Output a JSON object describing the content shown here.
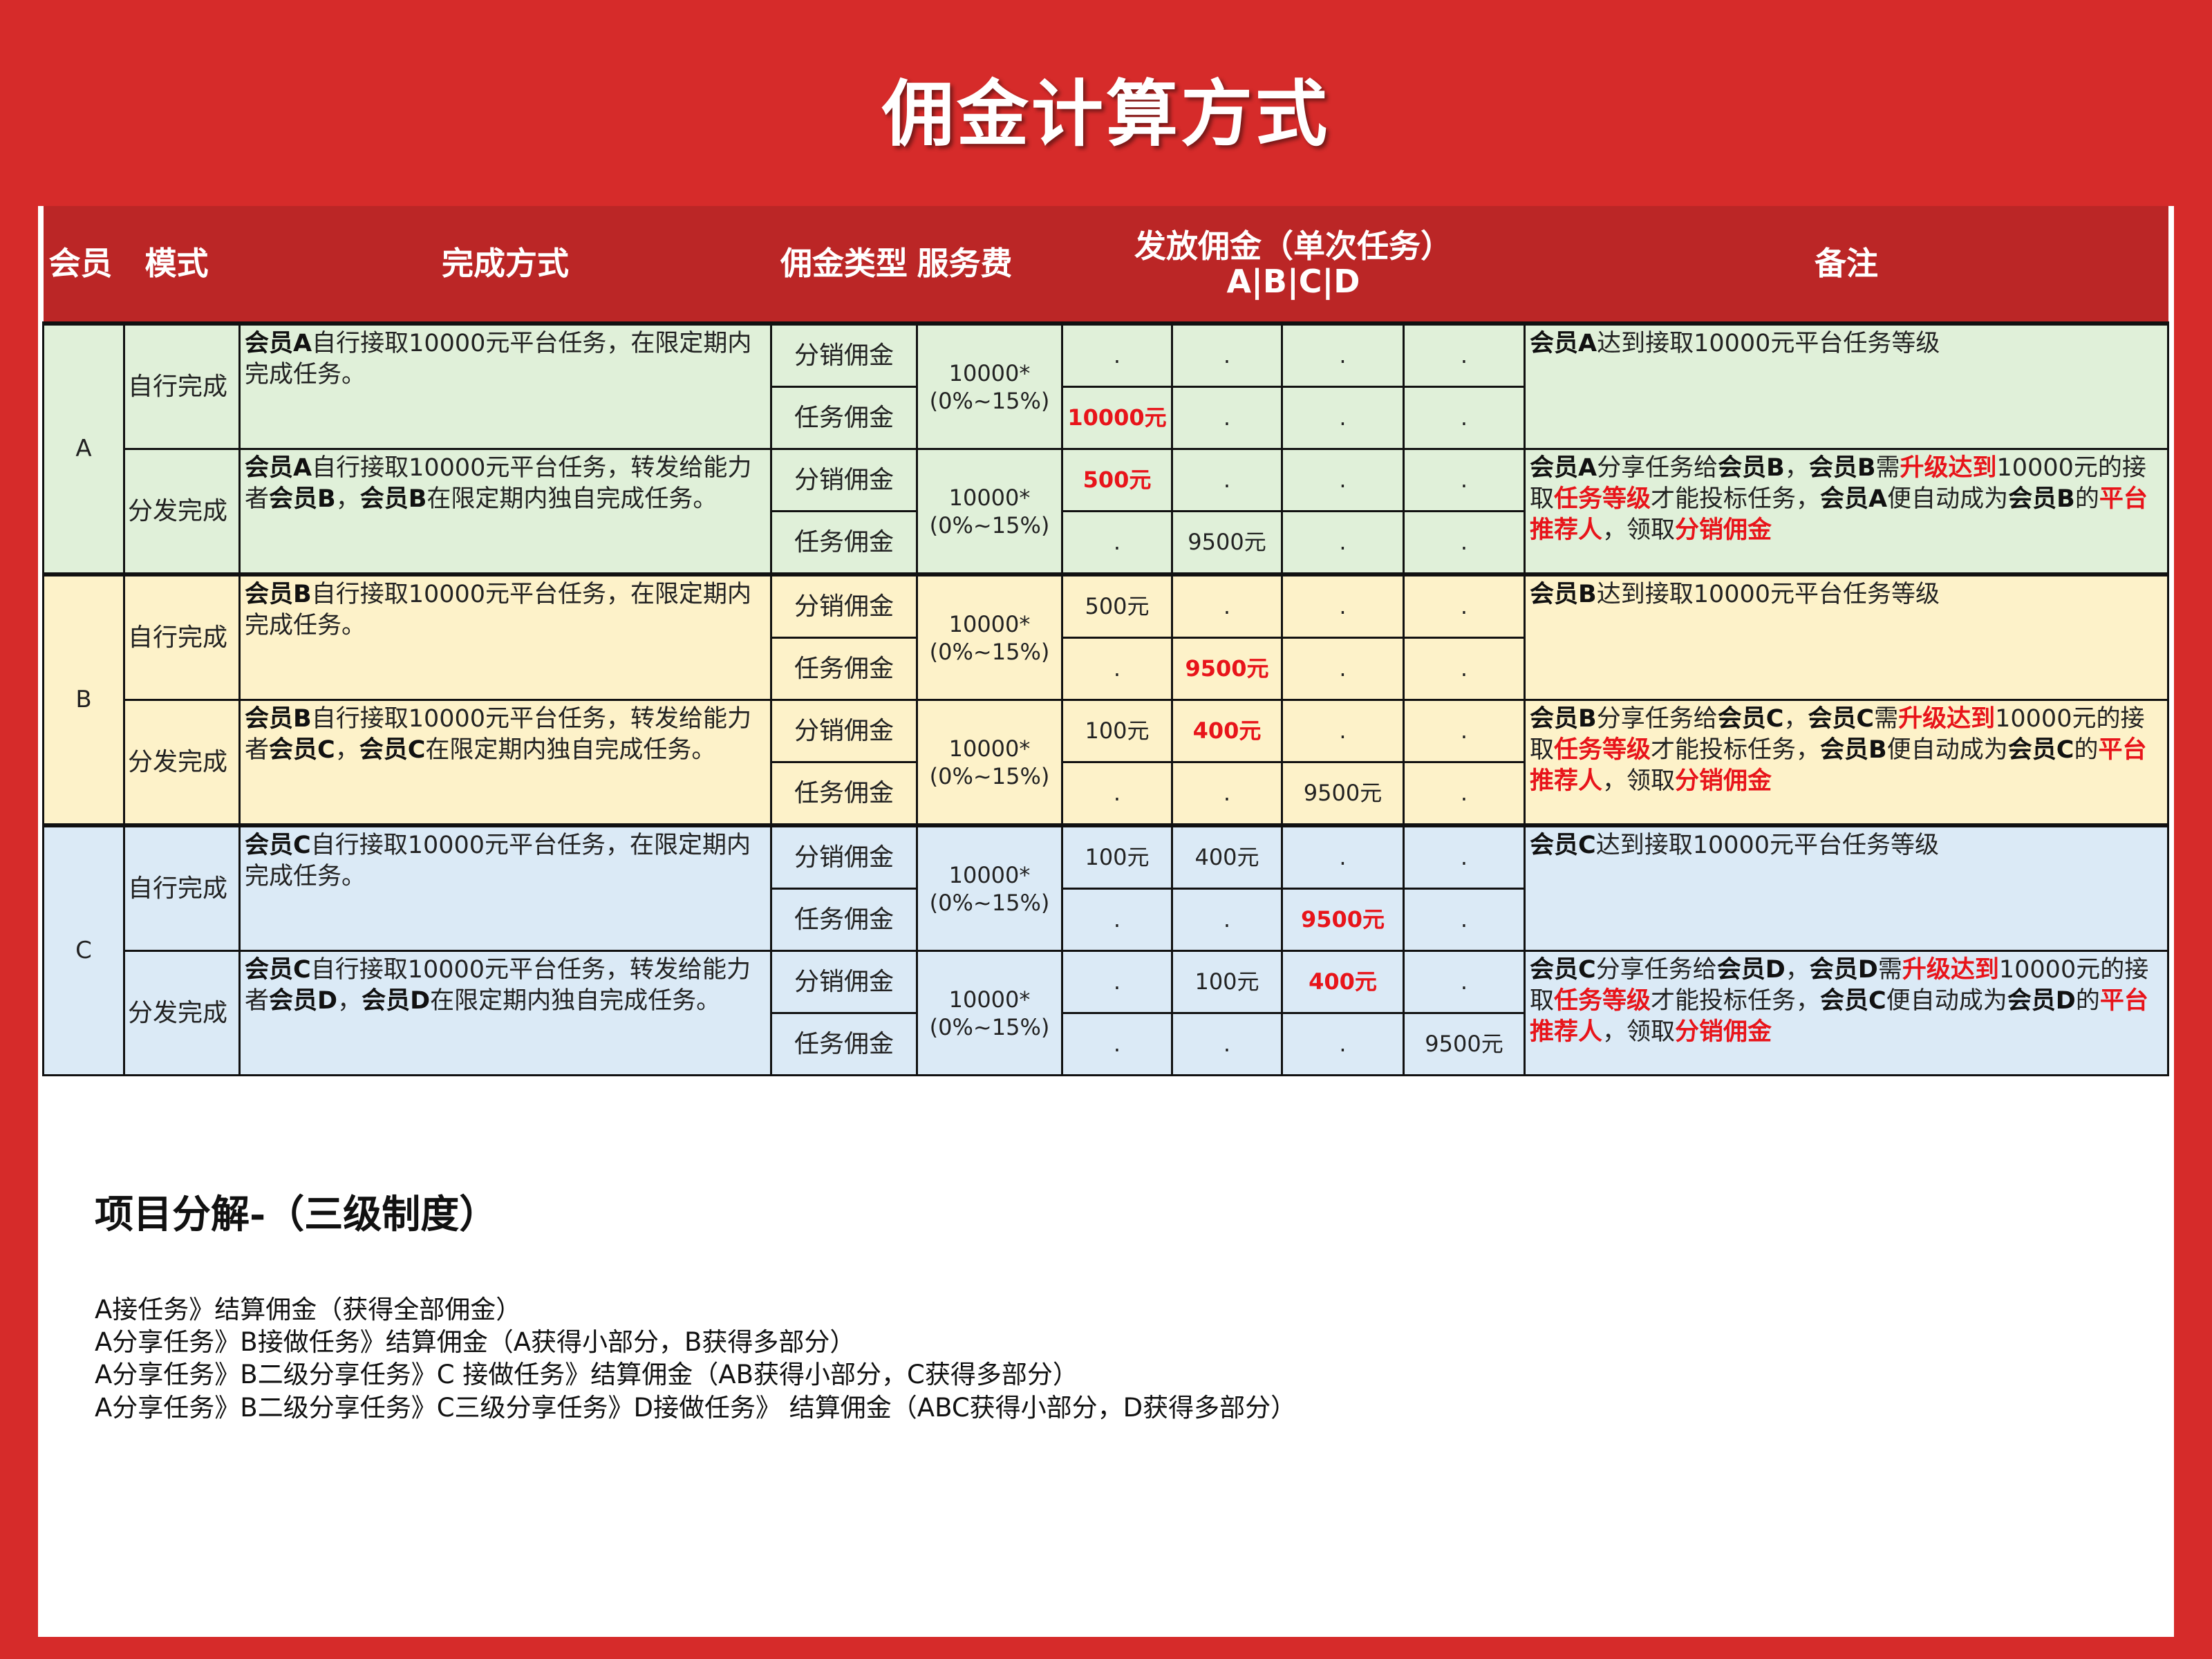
{
  "title": "佣金计算方式",
  "colors": {
    "background": "#d62b2a",
    "header": "#bb2626",
    "red_text": "#e8141a",
    "group_A": "#e0f0d9",
    "group_B": "#fdf2c9",
    "group_C": "#dbeaf6"
  },
  "headers": {
    "member": "会员",
    "mode": "模式",
    "method": "完成方式",
    "type": "佣金类型",
    "fee": "服务费",
    "payout": "发放佣金（单次任务）",
    "payout_sub": "A|B|C|D",
    "remark": "备注"
  },
  "members": [
    {
      "id": "A",
      "color": "#e0f0d9",
      "modes": [
        {
          "mode": "自行完成",
          "desc": [
            {
              "t": "会员A",
              "s": "b"
            },
            {
              "t": "自行接取10000元平台任务，在限定期内完成任务。",
              "s": ""
            }
          ],
          "fee": [
            "10000*",
            "(0%~15%)"
          ],
          "rows": [
            {
              "type": "分销佣金",
              "cells": [
                {
                  "v": ".",
                  "red": false
                },
                {
                  "v": ".",
                  "red": false
                },
                {
                  "v": ".",
                  "red": false
                },
                {
                  "v": ".",
                  "red": false
                }
              ]
            },
            {
              "type": "任务佣金",
              "cells": [
                {
                  "v": "10000元",
                  "red": true
                },
                {
                  "v": ".",
                  "red": false
                },
                {
                  "v": ".",
                  "red": false
                },
                {
                  "v": ".",
                  "red": false
                }
              ]
            }
          ],
          "remark": [
            {
              "t": "会员A",
              "s": "b"
            },
            {
              "t": "达到接取10000元平台任务等级",
              "s": ""
            }
          ]
        },
        {
          "mode": "分发完成",
          "desc": [
            {
              "t": "会员A",
              "s": "b"
            },
            {
              "t": "自行接取10000元平台任务，转发给能力者",
              "s": ""
            },
            {
              "t": "会员B",
              "s": "b"
            },
            {
              "t": "，",
              "s": ""
            },
            {
              "t": "会员B",
              "s": "b"
            },
            {
              "t": "在限定期内独自完成任务。",
              "s": ""
            }
          ],
          "fee": [
            "10000*",
            "(0%~15%)"
          ],
          "rows": [
            {
              "type": "分销佣金",
              "cells": [
                {
                  "v": "500元",
                  "red": true
                },
                {
                  "v": ".",
                  "red": false
                },
                {
                  "v": ".",
                  "red": false
                },
                {
                  "v": ".",
                  "red": false
                }
              ]
            },
            {
              "type": "任务佣金",
              "cells": [
                {
                  "v": ".",
                  "red": false
                },
                {
                  "v": "9500元",
                  "red": false
                },
                {
                  "v": ".",
                  "red": false
                },
                {
                  "v": ".",
                  "red": false
                }
              ]
            }
          ],
          "remark": [
            {
              "t": "会员A",
              "s": "b"
            },
            {
              "t": "分享任务给",
              "s": ""
            },
            {
              "t": "会员B",
              "s": "b"
            },
            {
              "t": "，",
              "s": ""
            },
            {
              "t": "会员B",
              "s": "b"
            },
            {
              "t": "需",
              "s": ""
            },
            {
              "t": "升级达到",
              "s": "r"
            },
            {
              "t": "10000元的接取",
              "s": ""
            },
            {
              "t": "任务等级",
              "s": "r"
            },
            {
              "t": "才能投标任务，",
              "s": ""
            },
            {
              "t": "会员A",
              "s": "b"
            },
            {
              "t": "便自动成为",
              "s": ""
            },
            {
              "t": "会员B",
              "s": "b"
            },
            {
              "t": "的",
              "s": ""
            },
            {
              "t": "平台推荐人",
              "s": "r"
            },
            {
              "t": "，领取",
              "s": ""
            },
            {
              "t": "分销佣金",
              "s": "r"
            }
          ]
        }
      ]
    },
    {
      "id": "B",
      "color": "#fdf2c9",
      "modes": [
        {
          "mode": "自行完成",
          "desc": [
            {
              "t": "会员B",
              "s": "b"
            },
            {
              "t": "自行接取10000元平台任务，在限定期内完成任务。",
              "s": ""
            }
          ],
          "fee": [
            "10000*",
            "(0%~15%)"
          ],
          "rows": [
            {
              "type": "分销佣金",
              "cells": [
                {
                  "v": "500元",
                  "red": false
                },
                {
                  "v": ".",
                  "red": false
                },
                {
                  "v": ".",
                  "red": false
                },
                {
                  "v": ".",
                  "red": false
                }
              ]
            },
            {
              "type": "任务佣金",
              "cells": [
                {
                  "v": ".",
                  "red": false
                },
                {
                  "v": "9500元",
                  "red": true
                },
                {
                  "v": ".",
                  "red": false
                },
                {
                  "v": ".",
                  "red": false
                }
              ]
            }
          ],
          "remark": [
            {
              "t": "会员B",
              "s": "b"
            },
            {
              "t": "达到接取10000元平台任务等级",
              "s": ""
            }
          ]
        },
        {
          "mode": "分发完成",
          "desc": [
            {
              "t": "会员B",
              "s": "b"
            },
            {
              "t": "自行接取10000元平台任务，转发给能力者",
              "s": ""
            },
            {
              "t": "会员C",
              "s": "b"
            },
            {
              "t": "，",
              "s": ""
            },
            {
              "t": "会员C",
              "s": "b"
            },
            {
              "t": "在限定期内独自完成任务。",
              "s": ""
            }
          ],
          "fee": [
            "10000*",
            "(0%~15%)"
          ],
          "rows": [
            {
              "type": "分销佣金",
              "cells": [
                {
                  "v": "100元",
                  "red": false
                },
                {
                  "v": "400元",
                  "red": true
                },
                {
                  "v": ".",
                  "red": false
                },
                {
                  "v": ".",
                  "red": false
                }
              ]
            },
            {
              "type": "任务佣金",
              "cells": [
                {
                  "v": ".",
                  "red": false
                },
                {
                  "v": ".",
                  "red": false
                },
                {
                  "v": "9500元",
                  "red": false
                },
                {
                  "v": ".",
                  "red": false
                }
              ]
            }
          ],
          "remark": [
            {
              "t": "会员B",
              "s": "b"
            },
            {
              "t": "分享任务给",
              "s": ""
            },
            {
              "t": "会员C",
              "s": "b"
            },
            {
              "t": "，",
              "s": ""
            },
            {
              "t": "会员C",
              "s": "b"
            },
            {
              "t": "需",
              "s": ""
            },
            {
              "t": "升级达到",
              "s": "r"
            },
            {
              "t": "10000元的接取",
              "s": ""
            },
            {
              "t": "任务等级",
              "s": "r"
            },
            {
              "t": "才能投标任务，",
              "s": ""
            },
            {
              "t": "会员B",
              "s": "b"
            },
            {
              "t": "便自动成为",
              "s": ""
            },
            {
              "t": "会员C",
              "s": "b"
            },
            {
              "t": "的",
              "s": ""
            },
            {
              "t": "平台推荐人",
              "s": "r"
            },
            {
              "t": "，领取",
              "s": ""
            },
            {
              "t": "分销佣金",
              "s": "r"
            }
          ]
        }
      ]
    },
    {
      "id": "C",
      "color": "#dbeaf6",
      "modes": [
        {
          "mode": "自行完成",
          "desc": [
            {
              "t": "会员C",
              "s": "b"
            },
            {
              "t": "自行接取10000元平台任务，在限定期内完成任务。",
              "s": ""
            }
          ],
          "fee": [
            "10000*",
            "(0%~15%)"
          ],
          "rows": [
            {
              "type": "分销佣金",
              "cells": [
                {
                  "v": "100元",
                  "red": false
                },
                {
                  "v": "400元",
                  "red": false
                },
                {
                  "v": ".",
                  "red": false
                },
                {
                  "v": ".",
                  "red": false
                }
              ]
            },
            {
              "type": "任务佣金",
              "cells": [
                {
                  "v": ".",
                  "red": false
                },
                {
                  "v": ".",
                  "red": false
                },
                {
                  "v": "9500元",
                  "red": true
                },
                {
                  "v": ".",
                  "red": false
                }
              ]
            }
          ],
          "remark": [
            {
              "t": "会员C",
              "s": "b"
            },
            {
              "t": "达到接取10000元平台任务等级",
              "s": ""
            }
          ]
        },
        {
          "mode": "分发完成",
          "desc": [
            {
              "t": "会员C",
              "s": "b"
            },
            {
              "t": "自行接取10000元平台任务，转发给能力者",
              "s": ""
            },
            {
              "t": "会员D",
              "s": "b"
            },
            {
              "t": "，",
              "s": ""
            },
            {
              "t": "会员D",
              "s": "b"
            },
            {
              "t": "在限定期内独自完成任务。",
              "s": ""
            }
          ],
          "fee": [
            "10000*",
            "(0%~15%)"
          ],
          "rows": [
            {
              "type": "分销佣金",
              "cells": [
                {
                  "v": ".",
                  "red": false
                },
                {
                  "v": "100元",
                  "red": false
                },
                {
                  "v": "400元",
                  "red": true
                },
                {
                  "v": ".",
                  "red": false
                }
              ]
            },
            {
              "type": "任务佣金",
              "cells": [
                {
                  "v": ".",
                  "red": false
                },
                {
                  "v": ".",
                  "red": false
                },
                {
                  "v": ".",
                  "red": false
                },
                {
                  "v": "9500元",
                  "red": false
                }
              ]
            }
          ],
          "remark": [
            {
              "t": "会员C",
              "s": "b"
            },
            {
              "t": "分享任务给",
              "s": ""
            },
            {
              "t": "会员D",
              "s": "b"
            },
            {
              "t": "，",
              "s": ""
            },
            {
              "t": "会员D",
              "s": "b"
            },
            {
              "t": "需",
              "s": ""
            },
            {
              "t": "升级达到",
              "s": "r"
            },
            {
              "t": "10000元的接取",
              "s": ""
            },
            {
              "t": "任务等级",
              "s": "r"
            },
            {
              "t": "才能投标任务，",
              "s": ""
            },
            {
              "t": "会员C",
              "s": "b"
            },
            {
              "t": "便自动成为",
              "s": ""
            },
            {
              "t": "会员D",
              "s": "b"
            },
            {
              "t": "的",
              "s": ""
            },
            {
              "t": "平台推荐人",
              "s": "r"
            },
            {
              "t": "，领取",
              "s": ""
            },
            {
              "t": "分销佣金",
              "s": "r"
            }
          ]
        }
      ]
    }
  ],
  "breakdown": {
    "title": "项目分解-（三级制度）",
    "lines": [
      "A接任务》结算佣金（获得全部佣金）",
      "A分享任务》B接做任务》结算佣金（A获得小部分，B获得多部分）",
      "A分享任务》B二级分享任务》C 接做任务》结算佣金（AB获得小部分，C获得多部分）",
      "A分享任务》B二级分享任务》C三级分享任务》D接做任务》 结算佣金（ABC获得小部分，D获得多部分）"
    ]
  }
}
